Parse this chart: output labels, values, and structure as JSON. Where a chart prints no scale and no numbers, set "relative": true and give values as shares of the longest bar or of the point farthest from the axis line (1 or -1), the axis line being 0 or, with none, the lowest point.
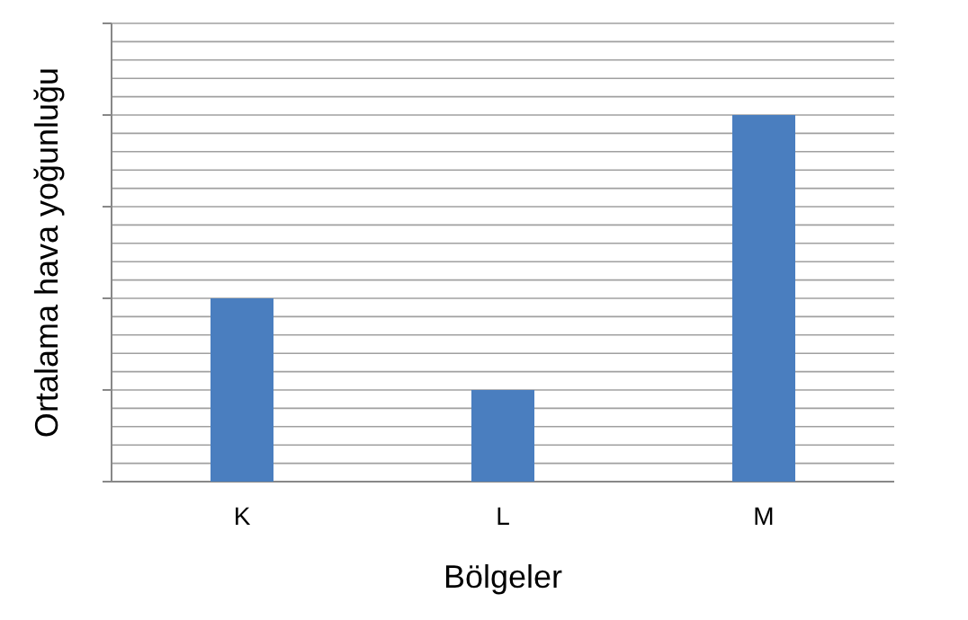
{
  "chart_data": {
    "type": "bar",
    "relative": true,
    "xlabel": "Bölgeler",
    "ylabel": "Ortalama hava yoğunluğu",
    "categories": [
      "K",
      "L",
      "M"
    ],
    "values": [
      0.5,
      0.25,
      1
    ],
    "color": "#4a7ebf",
    "grid": true
  }
}
